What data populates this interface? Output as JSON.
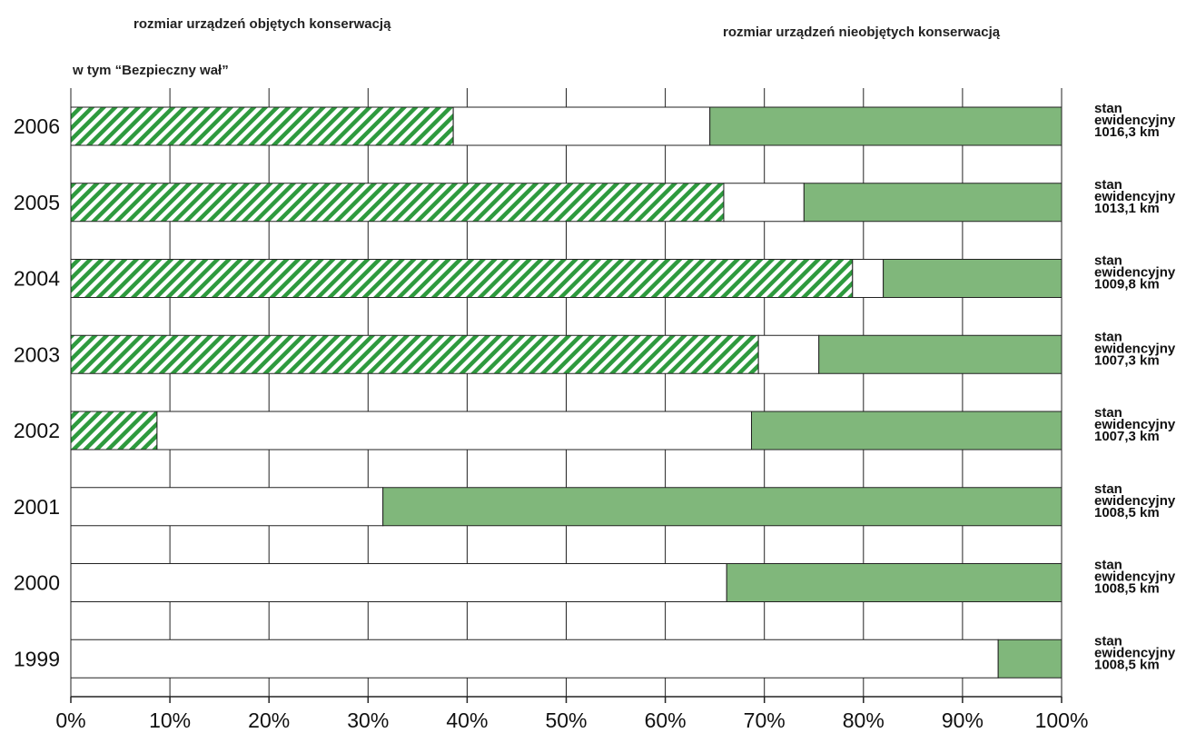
{
  "header": {
    "left_title": "rozmiar urządzeń objętych konserwacją",
    "right_title": "rozmiar urządzeń nieobjętych konserwacją",
    "sub_title": "w tym “Bezpieczny wał”"
  },
  "colors": {
    "hatch_green": "#2e9a3e",
    "not_maintained": "#80b77b",
    "maintained": "#ffffff",
    "outline": "#222222",
    "grid": "#222222"
  },
  "chart_data": {
    "type": "bar",
    "orientation": "horizontal",
    "stacked": true,
    "categories": [
      "2006",
      "2005",
      "2004",
      "2003",
      "2002",
      "2001",
      "2000",
      "1999"
    ],
    "x_tick_labels": [
      "0%",
      "10%",
      "20%",
      "30%",
      "40%",
      "50%",
      "60%",
      "70%",
      "80%",
      "90%",
      "100%"
    ],
    "xlim": [
      0,
      100
    ],
    "grid": true,
    "series": [
      {
        "name": "w tym “Bezpieczny wał”",
        "pattern": "hatched",
        "values": [
          38.6,
          65.9,
          78.9,
          69.4,
          8.7,
          0,
          0,
          0
        ]
      },
      {
        "name": "rozmiar urządzeń objętych konserwacją",
        "pattern": "white",
        "values": [
          25.9,
          8.1,
          3.1,
          6.1,
          60.0,
          31.5,
          66.2,
          93.6
        ]
      },
      {
        "name": "rozmiar urządzeń nieobjętych konserwacją",
        "pattern": "solid-green",
        "values": [
          35.5,
          26.0,
          18.0,
          24.5,
          31.3,
          68.5,
          33.8,
          6.4
        ]
      }
    ],
    "annotations": [
      {
        "line1": "stan",
        "line2": "ewidencyjny",
        "line3": "1016,3 km"
      },
      {
        "line1": "stan",
        "line2": "ewidencyjny",
        "line3": "1013,1 km"
      },
      {
        "line1": "stan",
        "line2": "ewidencyjny",
        "line3": "1009,8 km"
      },
      {
        "line1": "stan",
        "line2": "ewidencyjny",
        "line3": "1007,3 km"
      },
      {
        "line1": "stan",
        "line2": "ewidencyjny",
        "line3": "1007,3 km"
      },
      {
        "line1": "stan",
        "line2": "ewidencyjny",
        "line3": "1008,5 km"
      },
      {
        "line1": "stan",
        "line2": "ewidencyjny",
        "line3": "1008,5 km"
      },
      {
        "line1": "stan",
        "line2": "ewidencyjny",
        "line3": "1008,5 km"
      }
    ]
  }
}
